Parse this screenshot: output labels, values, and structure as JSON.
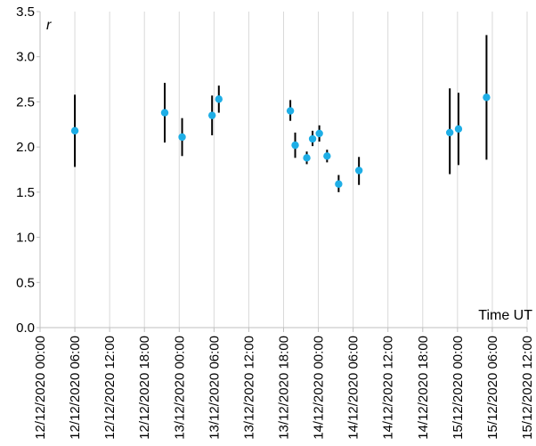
{
  "chart_data": {
    "type": "scatter",
    "title": "",
    "xlabel": "Time UT",
    "ylabel": "r",
    "ylim": [
      0.0,
      3.5
    ],
    "y_ticks": [
      "0.0",
      "0.5",
      "1.0",
      "1.5",
      "2.0",
      "2.5",
      "3.0",
      "3.5"
    ],
    "x_ticks": [
      "12/12/2020 00:00",
      "12/12/2020 06:00",
      "12/12/2020 12:00",
      "12/12/2020 18:00",
      "13/12/2020 00:00",
      "13/12/2020 06:00",
      "13/12/2020 12:00",
      "13/12/2020 18:00",
      "14/12/2020 00:00",
      "14/12/2020 06:00",
      "14/12/2020 12:00",
      "14/12/2020 18:00",
      "15/12/2020 00:00",
      "15/12/2020 06:00",
      "15/12/2020 12:00"
    ],
    "grid": "vertical",
    "marker_color": "#1eaee6",
    "errorbar_color": "#000000",
    "points": [
      {
        "x": "12/12/2020 06:00",
        "y": 2.18,
        "low": 1.78,
        "high": 2.58
      },
      {
        "x": "12/12/2020 21:30",
        "y": 2.38,
        "low": 2.05,
        "high": 2.71
      },
      {
        "x": "13/12/2020 00:30",
        "y": 2.11,
        "low": 1.9,
        "high": 2.32
      },
      {
        "x": "13/12/2020 05:40",
        "y": 2.35,
        "low": 2.13,
        "high": 2.57
      },
      {
        "x": "13/12/2020 06:50",
        "y": 2.53,
        "low": 2.38,
        "high": 2.68
      },
      {
        "x": "13/12/2020 19:10",
        "y": 2.4,
        "low": 2.29,
        "high": 2.52
      },
      {
        "x": "13/12/2020 20:00",
        "y": 2.02,
        "low": 1.88,
        "high": 2.16
      },
      {
        "x": "13/12/2020 22:00",
        "y": 1.88,
        "low": 1.81,
        "high": 1.95
      },
      {
        "x": "13/12/2020 23:00",
        "y": 2.09,
        "low": 2.01,
        "high": 2.18
      },
      {
        "x": "14/12/2020 00:10",
        "y": 2.15,
        "low": 2.06,
        "high": 2.24
      },
      {
        "x": "14/12/2020 01:30",
        "y": 1.9,
        "low": 1.83,
        "high": 1.97
      },
      {
        "x": "14/12/2020 03:30",
        "y": 1.59,
        "low": 1.5,
        "high": 1.69
      },
      {
        "x": "14/12/2020 07:00",
        "y": 1.74,
        "low": 1.58,
        "high": 1.89
      },
      {
        "x": "14/12/2020 22:40",
        "y": 2.16,
        "low": 1.7,
        "high": 2.65
      },
      {
        "x": "15/12/2020 00:10",
        "y": 2.2,
        "low": 1.8,
        "high": 2.6
      },
      {
        "x": "15/12/2020 05:00",
        "y": 2.55,
        "low": 1.86,
        "high": 3.24
      }
    ]
  }
}
